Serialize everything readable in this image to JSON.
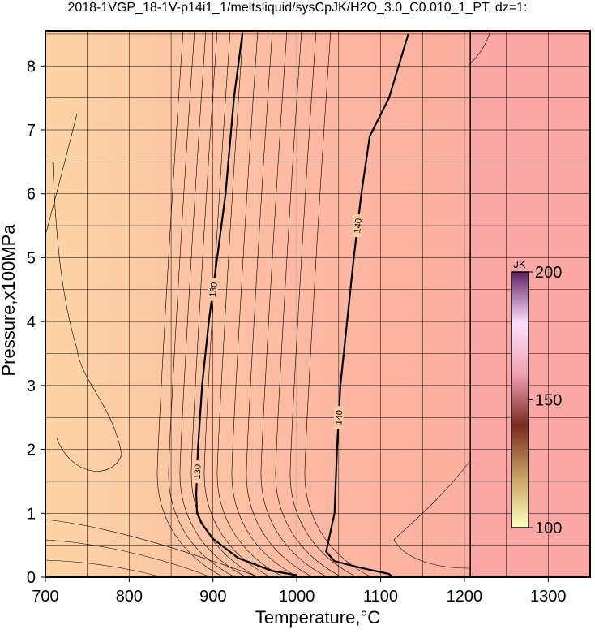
{
  "chart_data": {
    "type": "contour",
    "title": "2018-1VGP_18-1V-p14i1_1/meltsliquid/sysCpJK/H2O_3.0_C0.010_1_PT, dz=1:",
    "xlabel": "Temperature,°C",
    "ylabel": "Pressure,x100MPa",
    "xlim": [
      700,
      1350
    ],
    "ylim": [
      0,
      8.55
    ],
    "xticks": [
      700,
      800,
      900,
      1000,
      1100,
      1200,
      1300
    ],
    "yticks": [
      0,
      1,
      2,
      3,
      4,
      5,
      6,
      7,
      8
    ],
    "xgrid": [
      750,
      800,
      850,
      900,
      950,
      1000,
      1050,
      1100,
      1150,
      1200,
      1250,
      1300
    ],
    "ygrid": [
      0.5,
      1,
      1.5,
      2,
      2.5,
      3,
      3.5,
      4,
      4.5,
      5,
      5.5,
      6,
      6.5,
      7,
      7.5,
      8,
      8.5
    ],
    "background": [
      "#fdd4a6",
      "#fcb8a2",
      "#fca9a0"
    ],
    "boundary_x": 1207,
    "boundary_fill": "#fba7a5",
    "series": [
      {
        "name": "130",
        "color": "#000000",
        "x": [
          935,
          925,
          915,
          905,
          895,
          887,
          882,
          880,
          881,
          886,
          900,
          930,
          970,
          1000
        ],
        "y": [
          8.5,
          7.5,
          6,
          5,
          4,
          3,
          2,
          1.3,
          1.0,
          0.85,
          0.6,
          0.3,
          0.1,
          0.03
        ]
      },
      {
        "name": "140",
        "color": "#000000",
        "x": [
          1133,
          1110,
          1087,
          1077,
          1068,
          1060,
          1052,
          1048,
          1045,
          1040,
          1035,
          1045,
          1075,
          1110,
          1115
        ],
        "y": [
          8.5,
          7.5,
          6.9,
          6,
          5,
          4,
          3,
          2,
          1.0,
          0.7,
          0.4,
          0.25,
          0.15,
          0.05,
          0
        ]
      }
    ],
    "colorbar": {
      "label": "JK",
      "lim": [
        100,
        200
      ],
      "ticks": [
        100,
        150,
        200
      ],
      "colors": [
        "#ffffc0",
        "#c8a060",
        "#7a2a20",
        "#f0a0b0",
        "#ffe0ff",
        "#602060"
      ]
    }
  }
}
